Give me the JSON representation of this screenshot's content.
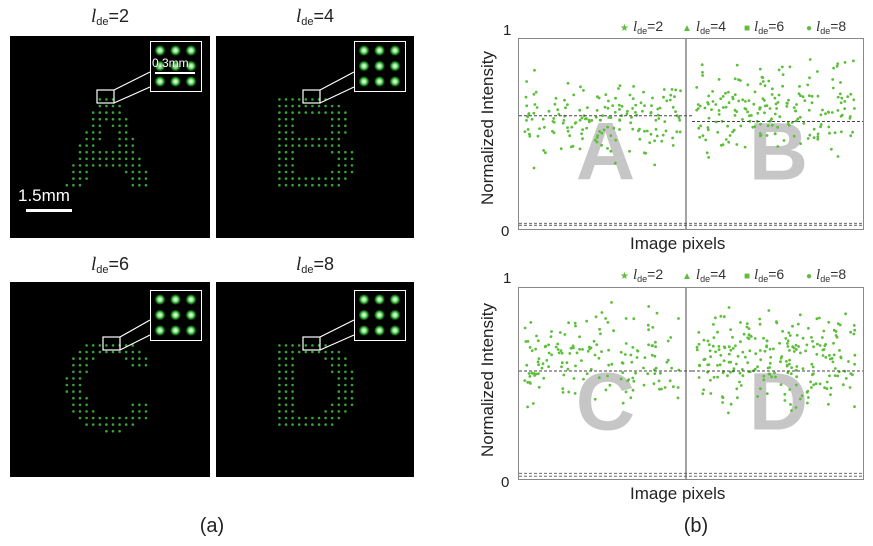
{
  "panel_a": {
    "caption": "(a)",
    "scale_bar_label": "1.5mm",
    "inset_scale_label": "0.3mm",
    "subplots": [
      {
        "letter_shape": "A",
        "l_de": "2"
      },
      {
        "letter_shape": "B",
        "l_de": "4"
      },
      {
        "letter_shape": "C",
        "l_de": "6"
      },
      {
        "letter_shape": "D",
        "l_de": "8"
      }
    ],
    "l_symbol": "l",
    "l_subscript": "de",
    "spot_color": "#3ec23e"
  },
  "panel_b": {
    "caption": "(b)"
  },
  "chart_data": [
    {
      "type": "scatter",
      "xlabel": "Image pixels",
      "ylabel": "Normalized Intensity",
      "ylim": [
        0,
        1
      ],
      "yticks": [
        "0",
        "1"
      ],
      "grid": false,
      "legend_position": "top",
      "background_letters": [
        "A",
        "B"
      ],
      "series_color": "#5cbf3a",
      "legend": [
        {
          "marker": "star",
          "prefix": "l",
          "sub": "de",
          "text": "=2"
        },
        {
          "marker": "triangle",
          "prefix": "l",
          "sub": "de",
          "text": "=4"
        },
        {
          "marker": "square",
          "prefix": "l",
          "sub": "de",
          "text": "=6"
        },
        {
          "marker": "circle",
          "prefix": "l",
          "sub": "de",
          "text": "=8"
        }
      ],
      "mean_lines": [
        {
          "segment": "A",
          "y": 0.6
        },
        {
          "segment": "B",
          "y": 0.57
        }
      ],
      "baseline_lines": [
        0.04,
        0.03
      ],
      "segments": [
        {
          "name": "A",
          "y_range": [
            0.3,
            0.85
          ],
          "count": 170,
          "seed": 11
        },
        {
          "name": "B",
          "y_range": [
            0.3,
            0.98
          ],
          "count": 200,
          "seed": 23
        }
      ]
    },
    {
      "type": "scatter",
      "xlabel": "Image pixels",
      "ylabel": "Normalized Intensity",
      "ylim": [
        0,
        1
      ],
      "yticks": [
        "0",
        "1"
      ],
      "grid": false,
      "legend_position": "top",
      "background_letters": [
        "C",
        "D"
      ],
      "series_color": "#5cbf3a",
      "legend": [
        {
          "marker": "star",
          "prefix": "l",
          "sub": "de",
          "text": "=2"
        },
        {
          "marker": "triangle",
          "prefix": "l",
          "sub": "de",
          "text": "=4"
        },
        {
          "marker": "square",
          "prefix": "l",
          "sub": "de",
          "text": "=6"
        },
        {
          "marker": "circle",
          "prefix": "l",
          "sub": "de",
          "text": "=8"
        }
      ],
      "mean_lines": [
        {
          "segment": "C",
          "y": 0.57
        },
        {
          "segment": "D",
          "y": 0.57
        }
      ],
      "baseline_lines": [
        0.04,
        0.025
      ],
      "segments": [
        {
          "name": "C",
          "y_range": [
            0.3,
            0.95
          ],
          "count": 160,
          "seed": 37
        },
        {
          "name": "D",
          "y_range": [
            0.28,
            1.0
          ],
          "count": 240,
          "seed": 53
        }
      ]
    }
  ]
}
